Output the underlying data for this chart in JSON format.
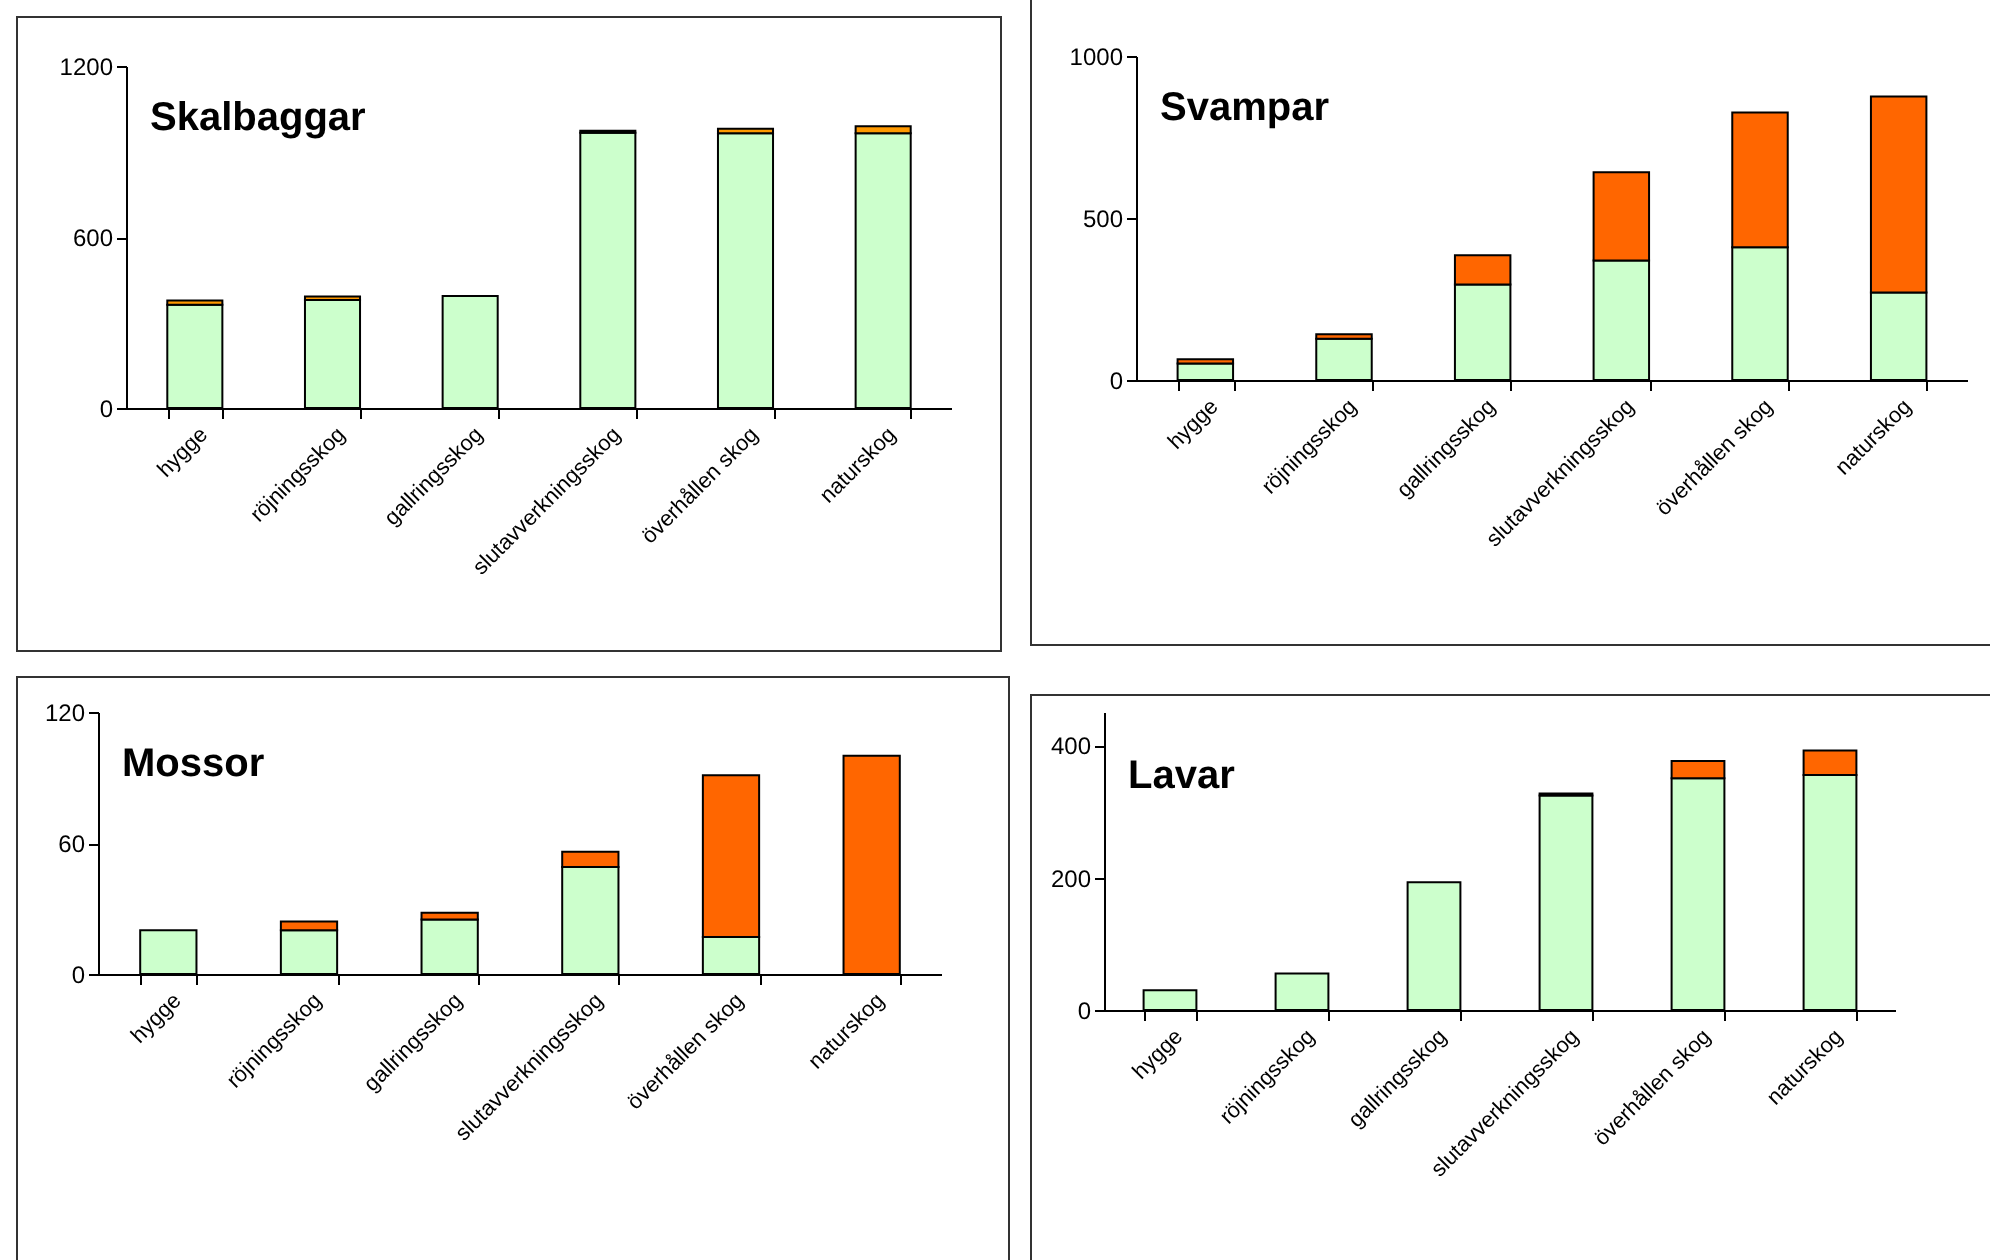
{
  "chart_data": [
    {
      "type": "bar",
      "title": "Skalbaggar",
      "stacked": true,
      "categories": [
        "hygge",
        "röjningsskog",
        "gallringsskog",
        "slutavverkningsskog",
        "överhållen skog",
        "naturskog"
      ],
      "ylim": [
        0,
        1200
      ],
      "yticks": [
        0,
        600,
        1200
      ],
      "series": [
        {
          "color": "#ccffcc",
          "values": [
            362,
            379,
            393,
            966,
            964,
            964
          ]
        },
        {
          "color": "#ff9900",
          "values": [
            15,
            12,
            null,
            7,
            16,
            25
          ]
        }
      ]
    },
    {
      "type": "bar",
      "title": "Svampar",
      "stacked": true,
      "categories": [
        "hygge",
        "röjningsskog",
        "gallringsskog",
        "slutavverkningsskog",
        "överhållen skog",
        "naturskog"
      ],
      "ylim": [
        0,
        1000
      ],
      "yticks": [
        0,
        500,
        1000
      ],
      "series": [
        {
          "color": "#ccffcc",
          "values": [
            51,
            127,
            295,
            369,
            410,
            270
          ]
        },
        {
          "color": "#ff6600",
          "values": [
            13,
            14,
            90,
            272,
            416,
            605
          ]
        }
      ]
    },
    {
      "type": "bar",
      "title": "Mossor",
      "stacked": true,
      "categories": [
        "hygge",
        "röjningsskog",
        "gallringsskog",
        "slutavverkningsskog",
        "överhållen skog",
        "naturskog"
      ],
      "ylim": [
        0,
        120
      ],
      "yticks": [
        0,
        60,
        120
      ],
      "series": [
        {
          "color": "#ccffcc",
          "values": [
            20,
            20,
            25,
            49,
            17,
            null
          ]
        },
        {
          "color": "#ff6600",
          "values": [
            null,
            4,
            3,
            7,
            74,
            100
          ]
        }
      ]
    },
    {
      "type": "bar",
      "title": "Lavar",
      "stacked": true,
      "categories": [
        "hygge",
        "röjningsskog",
        "gallringsskog",
        "slutavverkningsskog",
        "överhållen skog",
        "naturskog"
      ],
      "ylim": [
        0,
        450
      ],
      "yticks": [
        0,
        200,
        400
      ],
      "series": [
        {
          "color": "#ccffcc",
          "values": [
            30,
            55,
            193,
            324,
            350,
            355
          ]
        },
        {
          "color": "#ff6600",
          "values": [
            null,
            null,
            null,
            3,
            26,
            37
          ]
        }
      ]
    }
  ]
}
